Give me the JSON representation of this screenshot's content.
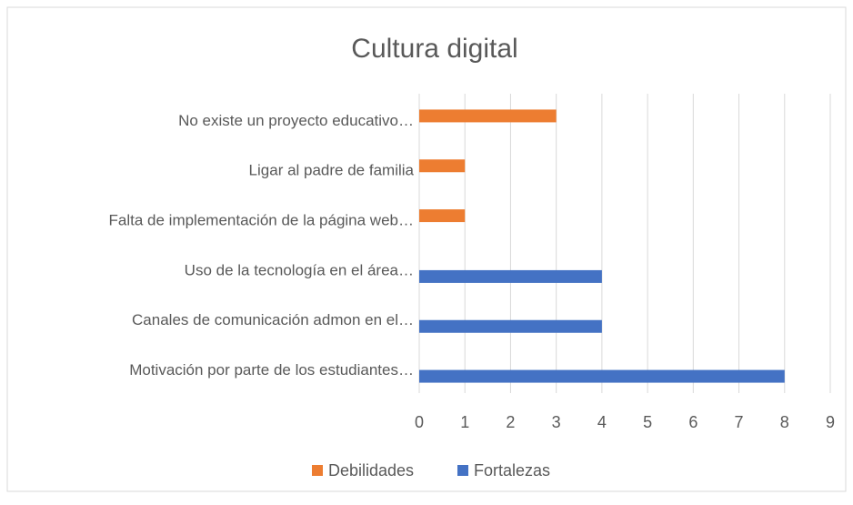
{
  "chart_data": {
    "type": "bar",
    "orientation": "horizontal",
    "title": "Cultura digital",
    "categories": [
      "No existe un proyecto educativo…",
      "Ligar al padre de familia",
      "Falta de implementación de la página web…",
      "Uso de la tecnología en el área…",
      "Canales de comunicación admon  en el…",
      "Motivación por parte de los estudiantes…"
    ],
    "series": [
      {
        "name": "Debilidades",
        "color": "#ED7D31",
        "values": [
          3,
          1,
          1,
          null,
          null,
          null
        ]
      },
      {
        "name": "Fortalezas",
        "color": "#4472C4",
        "values": [
          null,
          null,
          null,
          4,
          4,
          8
        ]
      }
    ],
    "xlim": [
      0,
      9
    ],
    "xticks": [
      0,
      1,
      2,
      3,
      4,
      5,
      6,
      7,
      8,
      9
    ],
    "grid": true,
    "legend": "bottom"
  }
}
